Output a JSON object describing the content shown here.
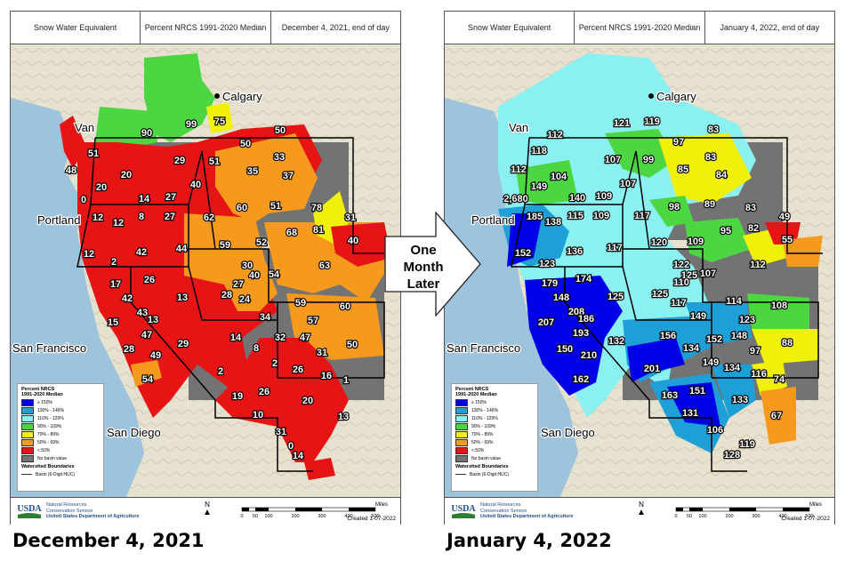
{
  "panels": [
    {
      "header": [
        "Snow Water Equivalent",
        "Percent NRCS 1991-2020 Median",
        "December 4, 2021, end of day"
      ],
      "date_caption": "December 4, 2021",
      "labels": [
        "51",
        "48",
        "0",
        "20",
        "20",
        "90",
        "99",
        "75",
        "50",
        "50",
        "29",
        "51",
        "33",
        "35",
        "37",
        "40",
        "14",
        "27",
        "12",
        "12",
        "8",
        "27",
        "62",
        "60",
        "51",
        "78",
        "31",
        "81",
        "40",
        "44",
        "59",
        "52",
        "68",
        "12",
        "2",
        "42",
        "30",
        "27",
        "40",
        "54",
        "63",
        "17",
        "42",
        "26",
        "13",
        "28",
        "24",
        "59",
        "60",
        "43",
        "13",
        "34",
        "57",
        "15",
        "47",
        "29",
        "14",
        "8",
        "32",
        "47",
        "28",
        "49",
        "31",
        "50",
        "2",
        "2",
        "26",
        "16",
        "1",
        "54",
        "19",
        "26",
        "20",
        "10",
        "13",
        "31",
        "0",
        "14"
      ],
      "cities": {
        "calgary": "Calgary",
        "vancouver": "Van",
        "portland": "Portland",
        "sanfrancisco": "San Francisco",
        "sandiego": "San Diego"
      },
      "legend": {
        "title1": "Percent NRCS",
        "title2": "1991-2020 Median",
        "items": [
          "≥ 150%",
          "130% - 149%",
          "110% - 129%",
          "90% - 109%",
          "70% - 89%",
          "50% - 69%",
          "< 50%",
          "No basin value"
        ],
        "colors": [
          "#0000e6",
          "#1e9fd6",
          "#8af0f0",
          "#4cd642",
          "#f0f00a",
          "#f59a1c",
          "#e61414",
          "#737373"
        ],
        "boundaries": "Watershed Boundaries",
        "basin": "Basin (6-Digit HUC)"
      },
      "footer": {
        "usda": "USDA",
        "agency1": "Natural Resources",
        "agency2": "Conservation Service",
        "dept": "United States Department of Agriculture",
        "north": "N",
        "miles": "Miles",
        "scale": [
          "0",
          "50",
          "100",
          "200",
          "300",
          "400",
          "500"
        ],
        "created": "Created 1-07-2022"
      }
    },
    {
      "header": [
        "Snow Water Equivalent",
        "Percent NRCS 1991-2020 Median",
        "January 4, 2022, end of day"
      ],
      "date_caption": "January 4, 2022",
      "labels": [
        "118",
        "112",
        "112",
        "121",
        "119",
        "97",
        "83",
        "107",
        "99",
        "85",
        "83",
        "149",
        "104",
        "107",
        "84",
        "2,680",
        "140",
        "109",
        "117",
        "98",
        "89",
        "83",
        "49",
        "185",
        "138",
        "115",
        "109",
        "120",
        "109",
        "95",
        "82",
        "55",
        "152",
        "136",
        "117",
        "122",
        "125",
        "107",
        "112",
        "123",
        "110",
        "179",
        "174",
        "148",
        "125",
        "125",
        "117",
        "114",
        "108",
        "208",
        "186",
        "193",
        "149",
        "123",
        "207",
        "132",
        "156",
        "152",
        "148",
        "134",
        "97",
        "88",
        "150",
        "210",
        "201",
        "149",
        "134",
        "116",
        "74",
        "162",
        "163",
        "151",
        "133",
        "131",
        "106",
        "67",
        "119",
        "128"
      ],
      "cities": {
        "calgary": "Calgary",
        "vancouver": "Van",
        "portland": "Portland",
        "sanfrancisco": "San Francisco",
        "sandiego": "San Diego"
      },
      "legend": {
        "title1": "Percent NRCS",
        "title2": "1991-2020 Median",
        "items": [
          "≥ 150%",
          "130% - 149%",
          "110% - 129%",
          "90% - 109%",
          "70% - 89%",
          "50% - 69%",
          "< 50%",
          "No basin value"
        ],
        "colors": [
          "#0000e6",
          "#1e9fd6",
          "#8af0f0",
          "#4cd642",
          "#f0f00a",
          "#f59a1c",
          "#e61414",
          "#737373"
        ],
        "boundaries": "Watershed Boundaries",
        "basin": "Basin (6-Digit HUC)"
      },
      "footer": {
        "usda": "USDA",
        "agency1": "Natural Resources",
        "agency2": "Conservation Service",
        "dept": "United States Department of Agriculture",
        "north": "N",
        "miles": "Miles",
        "scale": [
          "0",
          "50",
          "100",
          "200",
          "300",
          "400",
          "500"
        ],
        "created": "Created 1-07-2022"
      }
    }
  ],
  "center_arrow": {
    "line1": "One",
    "line2": "Month",
    "line3": "Later"
  }
}
